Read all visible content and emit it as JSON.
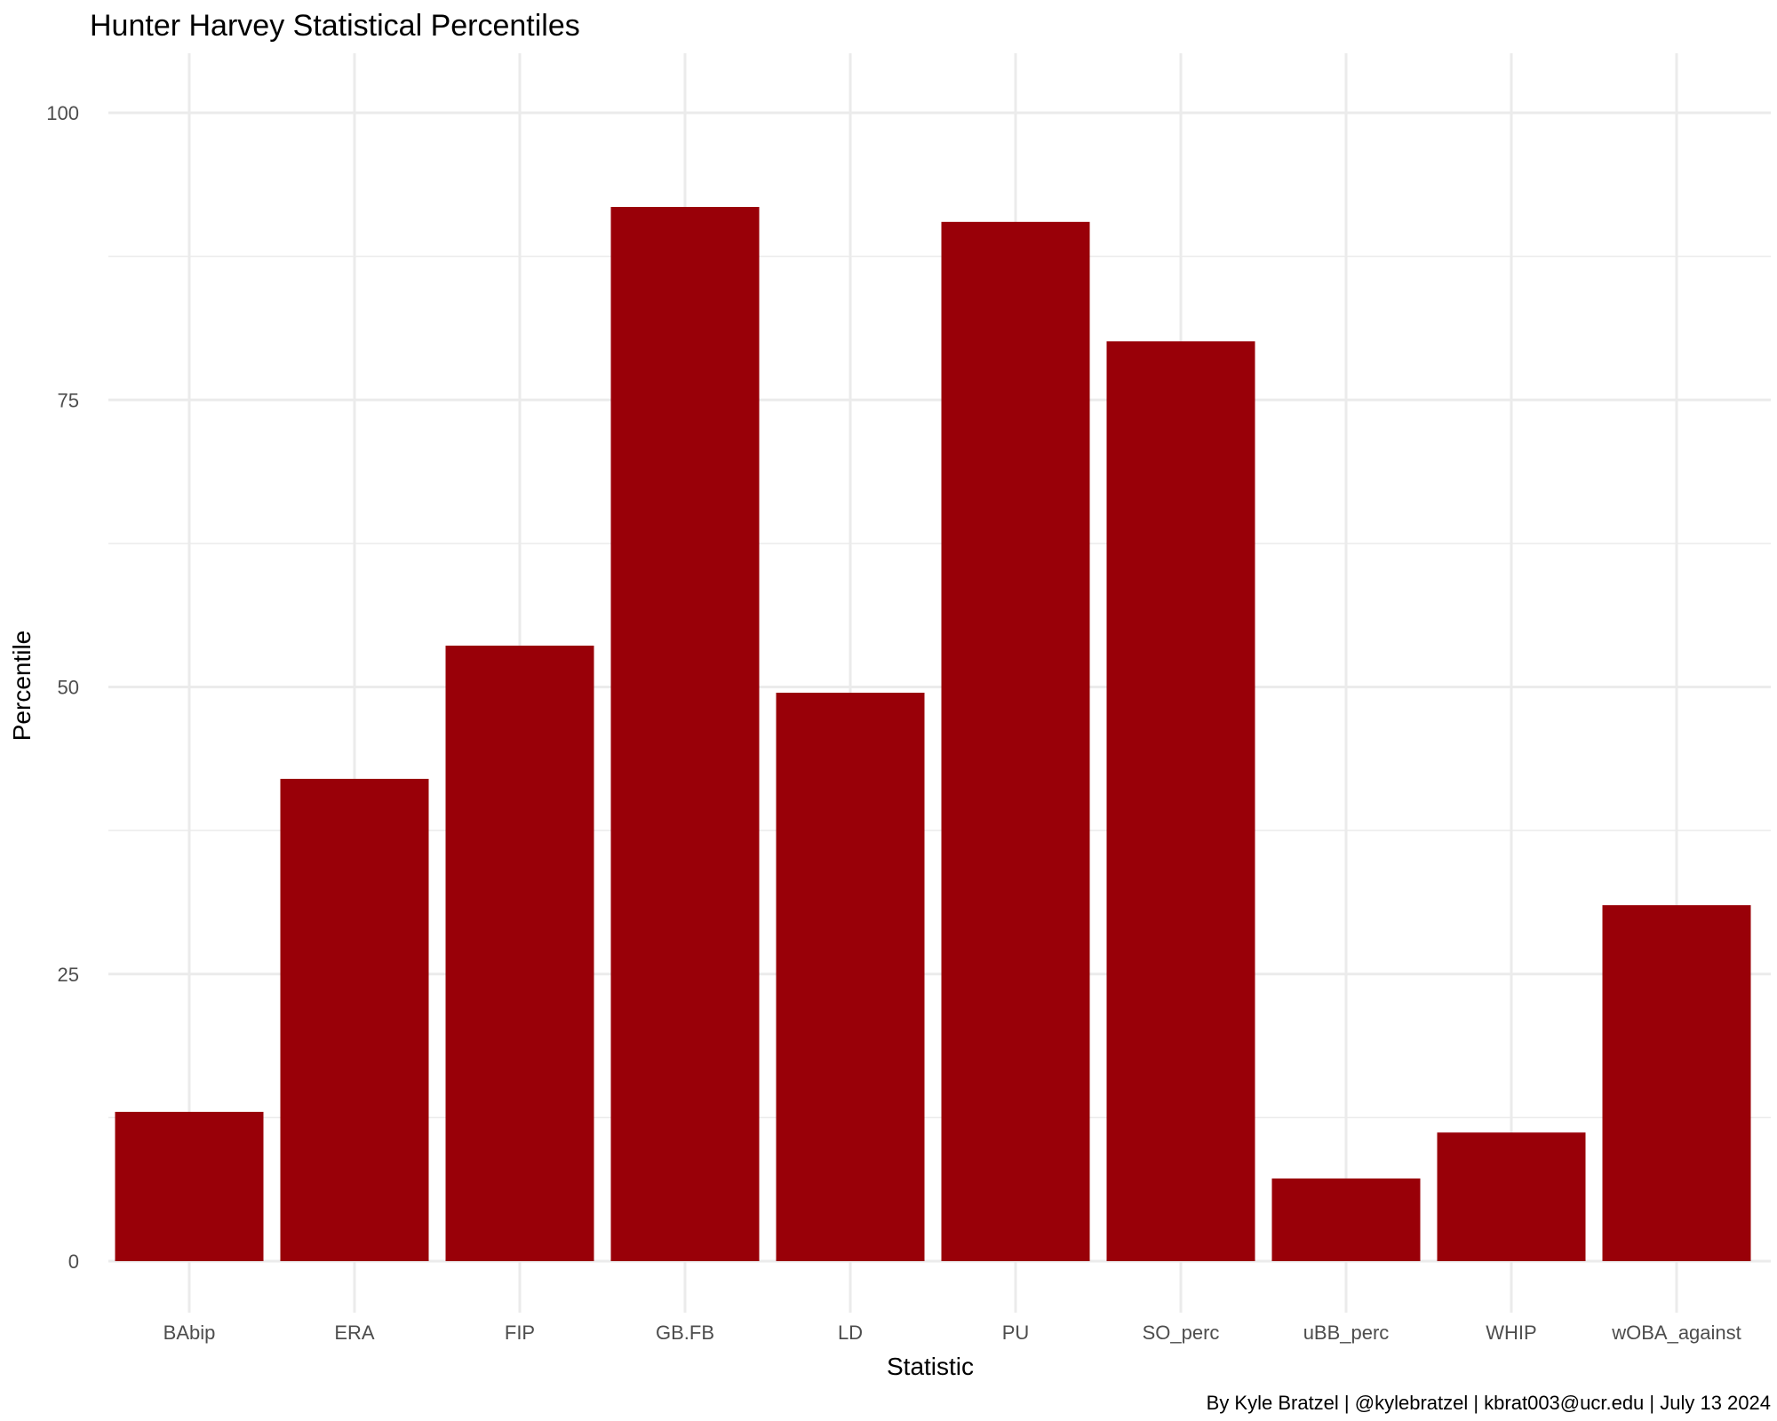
{
  "chart_data": {
    "type": "bar",
    "title": "Hunter Harvey Statistical Percentiles",
    "xlabel": "Statistic",
    "ylabel": "Percentile",
    "caption": "By Kyle Bratzel | @kylebratzel | kbrat003@ucr.edu | July 13 2024",
    "categories": [
      "BAbip",
      "ERA",
      "FIP",
      "GB.FB",
      "LD",
      "PU",
      "SO_perc",
      "uBB_perc",
      "WHIP",
      "wOBA_against"
    ],
    "values": [
      13,
      42,
      53.6,
      91.8,
      49.5,
      90.5,
      80.1,
      7.2,
      11.2,
      31
    ],
    "ylim": [
      0,
      100
    ],
    "yticks": [
      0,
      25,
      50,
      75,
      100
    ],
    "grid": true,
    "bar_color": "#990008"
  }
}
